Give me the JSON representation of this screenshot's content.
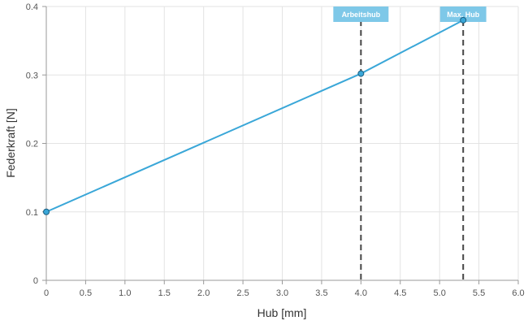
{
  "chart_data": {
    "type": "line",
    "xlabel": "Hub [mm]",
    "ylabel": "Federkraft [N]",
    "xlim": [
      0,
      6
    ],
    "ylim": [
      0,
      0.4
    ],
    "x_ticks": [
      0,
      0.5,
      1,
      1.5,
      2,
      2.5,
      3,
      3.5,
      4,
      4.5,
      5,
      5.5,
      6
    ],
    "x_tick_labels": [
      "0",
      "0.5",
      "1.0",
      "1.5",
      "2.0",
      "2.5",
      "3.0",
      "3.5",
      "4.0",
      "4.5",
      "5.0",
      "5.5",
      "6.0"
    ],
    "y_ticks": [
      0,
      0.1,
      0.2,
      0.3,
      0.4
    ],
    "y_tick_labels": [
      "0",
      "0.1",
      "0.2",
      "0.3",
      "0.4"
    ],
    "grid": true,
    "series": [
      {
        "color": "#3aa7d8",
        "points": [
          {
            "x": 0,
            "y": 0.1
          },
          {
            "x": 4.0,
            "y": 0.302
          },
          {
            "x": 5.3,
            "y": 0.38
          }
        ]
      }
    ],
    "markers": [
      {
        "label": "Arbeitshub",
        "x": 4.0
      },
      {
        "label": "Max. Hub",
        "x": 5.3
      }
    ],
    "colors": {
      "line": "#3aa7d8",
      "marker_box": "#7ec8e8",
      "marker_line": "#444444",
      "grid": "#e3e3e3",
      "axis": "#999999"
    }
  }
}
